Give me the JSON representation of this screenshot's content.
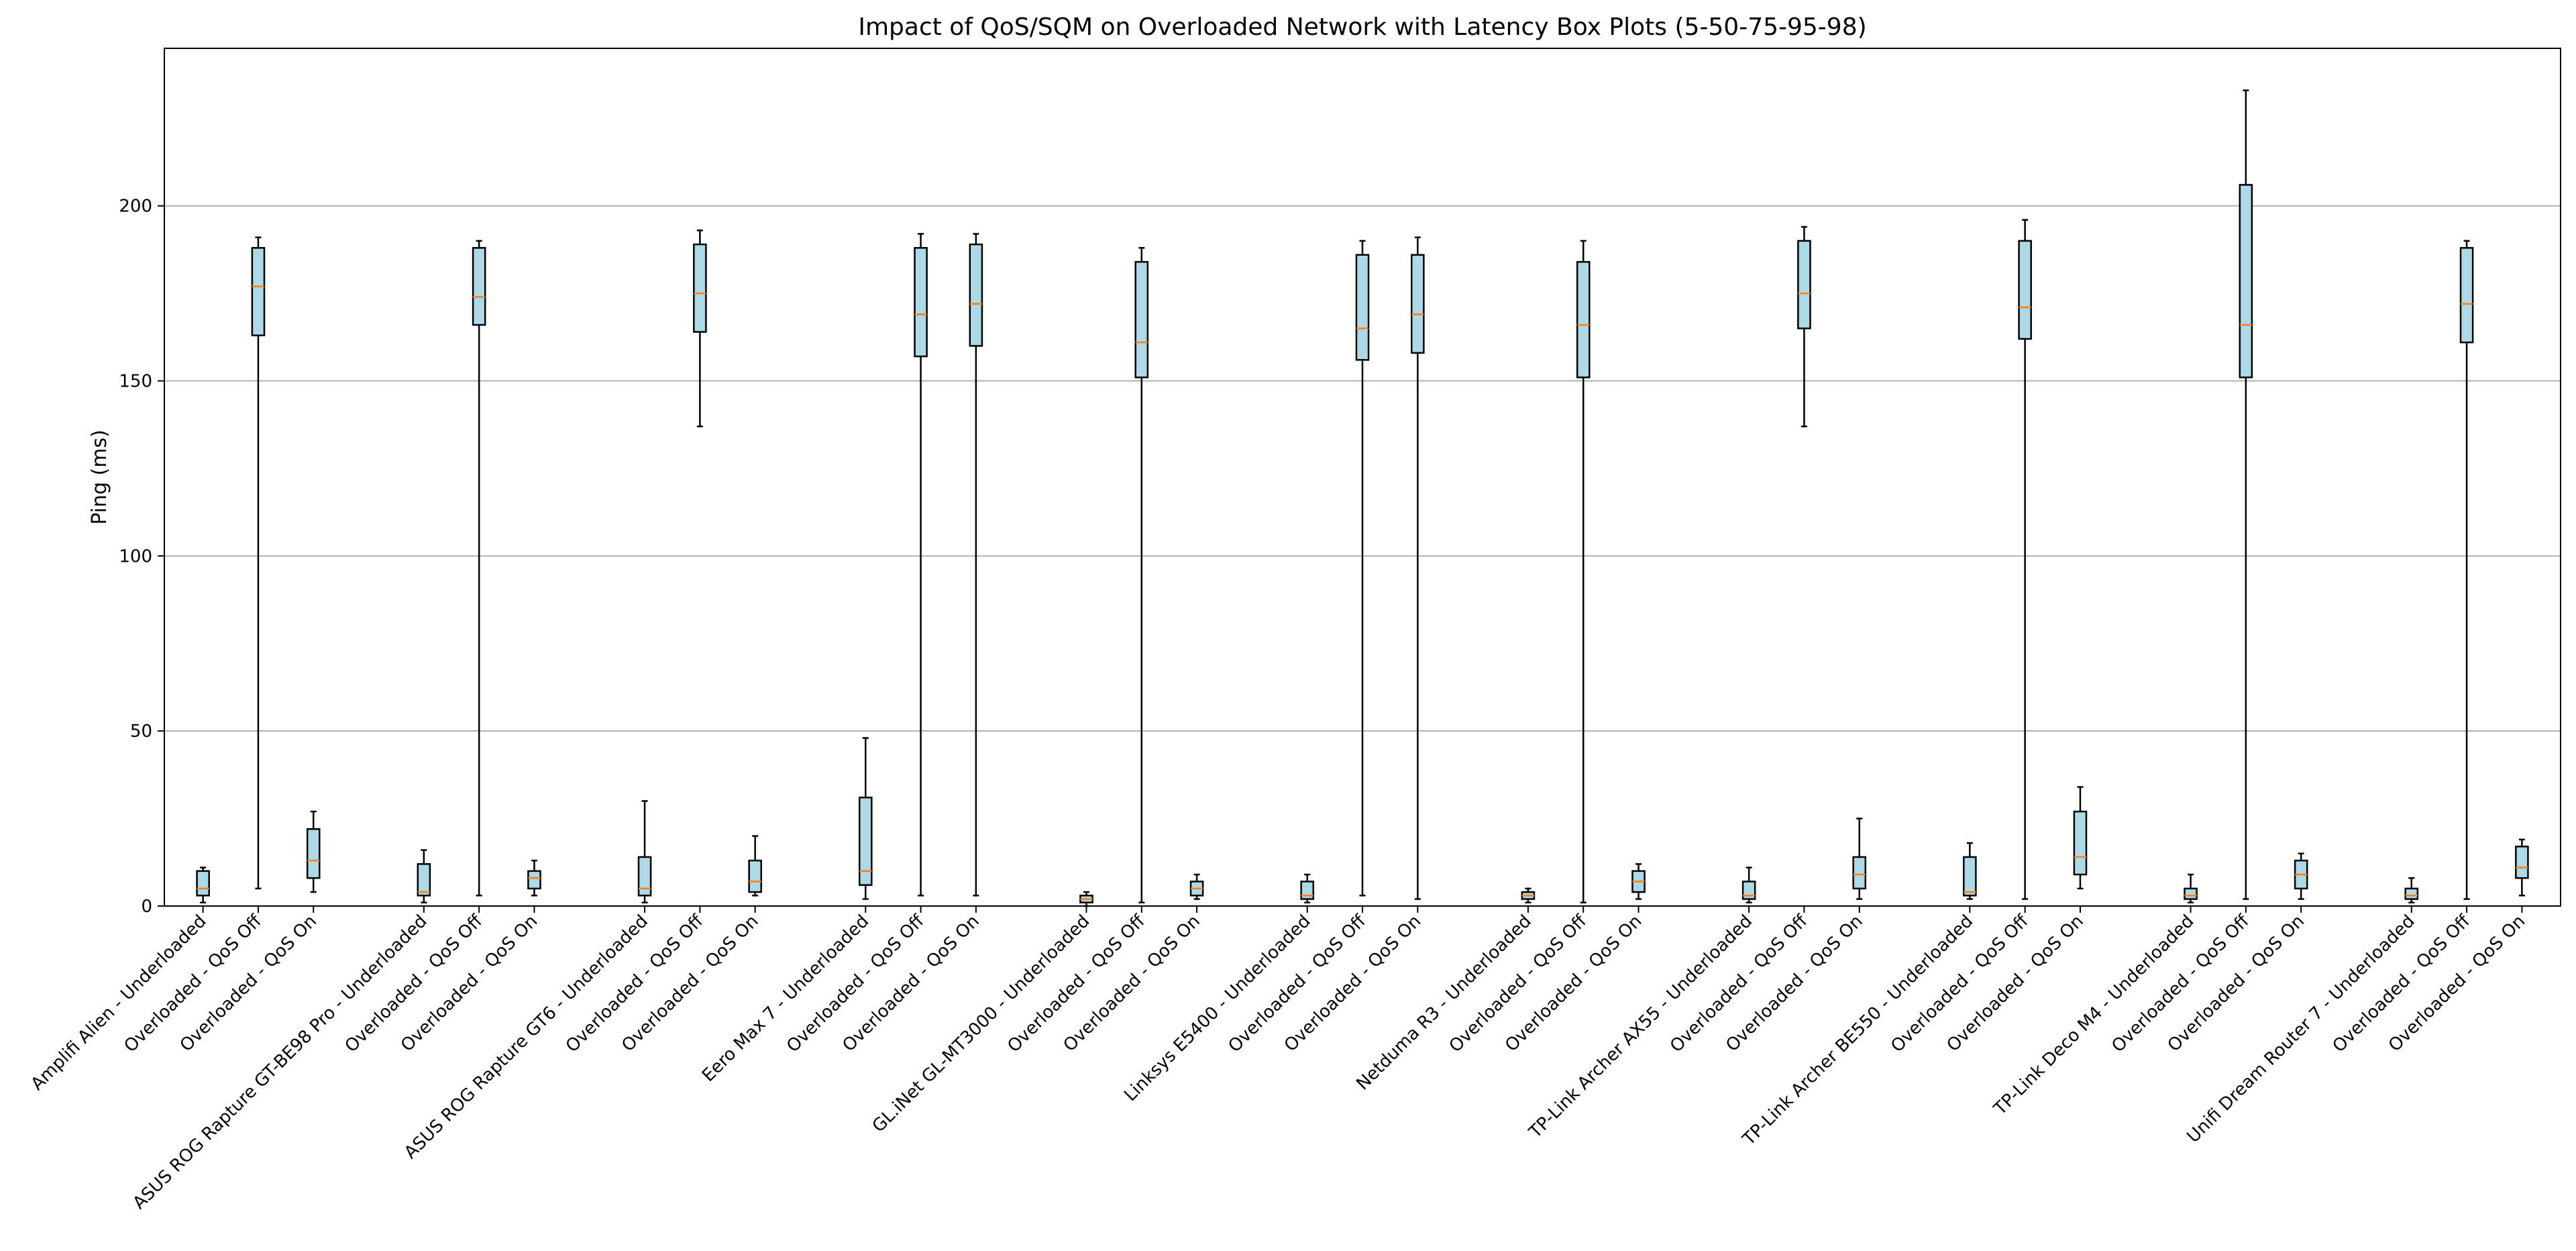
{
  "chart_data": {
    "type": "box",
    "title": "Impact of QoS/SQM on Overloaded Network with Latency Box Plots (5-50-75-95-98)",
    "xlabel": "",
    "ylabel": "Ping (ms)",
    "ylim": [
      0,
      245
    ],
    "yticks": [
      0,
      50,
      100,
      150,
      200
    ],
    "grid": "horizontal",
    "colors": {
      "box_fill": "#add8e6",
      "box_edge": "#000000",
      "median": "#ff7f0e",
      "grid": "#b0b0b0"
    },
    "box_stats_order": [
      "whisker_low",
      "q1",
      "median",
      "q3",
      "whisker_high"
    ],
    "groups": [
      {
        "boxes": [
          {
            "label": "Amplifi Alien - Underloaded",
            "stats": [
              1,
              3,
              5,
              10,
              11
            ]
          },
          {
            "label": "Overloaded - QoS Off",
            "stats": [
              5,
              163,
              177,
              188,
              191
            ]
          },
          {
            "label": "Overloaded - QoS On",
            "stats": [
              4,
              8,
              13,
              22,
              27
            ]
          }
        ]
      },
      {
        "boxes": [
          {
            "label": "ASUS ROG Rapture GT-BE98 Pro - Underloaded",
            "stats": [
              1,
              3,
              4,
              12,
              16
            ]
          },
          {
            "label": "Overloaded - QoS Off",
            "stats": [
              3,
              166,
              174,
              188,
              190
            ]
          },
          {
            "label": "Overloaded - QoS On",
            "stats": [
              3,
              5,
              8,
              10,
              13
            ]
          }
        ]
      },
      {
        "boxes": [
          {
            "label": "ASUS ROG Rapture GT6 - Underloaded",
            "stats": [
              1,
              3,
              5,
              14,
              30
            ]
          },
          {
            "label": "Overloaded - QoS Off",
            "stats": [
              137,
              164,
              175,
              189,
              193
            ]
          },
          {
            "label": "Overloaded - QoS On",
            "stats": [
              3,
              4,
              7,
              13,
              20
            ]
          }
        ]
      },
      {
        "boxes": [
          {
            "label": "Eero Max 7 - Underloaded",
            "stats": [
              2,
              6,
              10,
              31,
              48
            ]
          },
          {
            "label": "Overloaded - QoS Off",
            "stats": [
              3,
              157,
              169,
              188,
              192
            ]
          },
          {
            "label": "Overloaded - QoS On",
            "stats": [
              3,
              160,
              172,
              189,
              192
            ]
          }
        ]
      },
      {
        "boxes": [
          {
            "label": "GL.iNet GL-MT3000 - Underloaded",
            "stats": [
              0,
              1,
              2,
              3,
              4
            ]
          },
          {
            "label": "Overloaded - QoS Off",
            "stats": [
              1,
              151,
              161,
              184,
              188
            ]
          },
          {
            "label": "Overloaded - QoS On",
            "stats": [
              2,
              3,
              5,
              7,
              9
            ]
          }
        ]
      },
      {
        "boxes": [
          {
            "label": "Linksys E5400 - Underloaded",
            "stats": [
              1,
              2,
              3,
              7,
              9
            ]
          },
          {
            "label": "Overloaded - QoS Off",
            "stats": [
              3,
              156,
              165,
              186,
              190
            ]
          },
          {
            "label": "Overloaded - QoS On",
            "stats": [
              2,
              158,
              169,
              186,
              191
            ]
          }
        ]
      },
      {
        "boxes": [
          {
            "label": "Netduma R3 - Underloaded",
            "stats": [
              1,
              2,
              3,
              4,
              5
            ]
          },
          {
            "label": "Overloaded - QoS Off",
            "stats": [
              1,
              151,
              166,
              184,
              190
            ]
          },
          {
            "label": "Overloaded - QoS On",
            "stats": [
              2,
              4,
              7,
              10,
              12
            ]
          }
        ]
      },
      {
        "boxes": [
          {
            "label": "TP-Link Archer AX55 - Underloaded",
            "stats": [
              1,
              2,
              3,
              7,
              11
            ]
          },
          {
            "label": "Overloaded - QoS Off",
            "stats": [
              137,
              165,
              175,
              190,
              194
            ]
          },
          {
            "label": "Overloaded - QoS On",
            "stats": [
              2,
              5,
              9,
              14,
              25
            ]
          }
        ]
      },
      {
        "boxes": [
          {
            "label": "TP-Link Archer BE550 - Underloaded",
            "stats": [
              2,
              3,
              4,
              14,
              18
            ]
          },
          {
            "label": "Overloaded - QoS Off",
            "stats": [
              2,
              162,
              171,
              190,
              196
            ]
          },
          {
            "label": "Overloaded - QoS On",
            "stats": [
              5,
              9,
              14,
              27,
              34
            ]
          }
        ]
      },
      {
        "boxes": [
          {
            "label": "TP-Link Deco M4 - Underloaded",
            "stats": [
              1,
              2,
              3,
              5,
              9
            ]
          },
          {
            "label": "Overloaded - QoS Off",
            "stats": [
              2,
              151,
              166,
              206,
              233
            ]
          },
          {
            "label": "Overloaded - QoS On",
            "stats": [
              2,
              5,
              9,
              13,
              15
            ]
          }
        ]
      },
      {
        "boxes": [
          {
            "label": "Unifi Dream Router 7 - Underloaded",
            "stats": [
              1,
              2,
              3,
              5,
              8
            ]
          },
          {
            "label": "Overloaded - QoS Off",
            "stats": [
              2,
              161,
              172,
              188,
              190
            ]
          },
          {
            "label": "Overloaded - QoS On",
            "stats": [
              3,
              8,
              11,
              17,
              19
            ]
          }
        ]
      }
    ]
  }
}
